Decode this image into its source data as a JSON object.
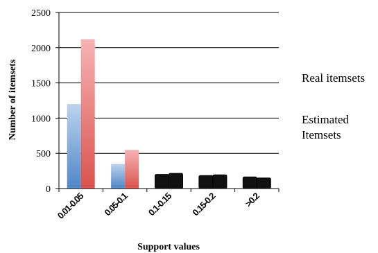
{
  "chart_data": {
    "type": "bar",
    "categories": [
      "0.01-0.05",
      "0.05-0.1",
      "0.1-0.15",
      "0.15-0.2",
      ">0.2"
    ],
    "series": [
      {
        "name": "Estimated Itemsets",
        "values": [
          1200,
          350,
          200,
          185,
          165
        ],
        "color": "#7fa8d8"
      },
      {
        "name": "Real itemsets",
        "values": [
          2120,
          550,
          215,
          195,
          150
        ],
        "color": "#ea7b7b"
      }
    ],
    "muted_color": "#111111",
    "xlabel": "Support values",
    "ylabel": "Number of itemsets",
    "ylim": [
      0,
      2500
    ],
    "yticks": [
      0,
      500,
      1000,
      1500,
      2000,
      2500
    ],
    "grid": true,
    "legend": [
      {
        "label": "Real itemsets"
      },
      {
        "label": "Estimated\nItemsets"
      }
    ]
  }
}
